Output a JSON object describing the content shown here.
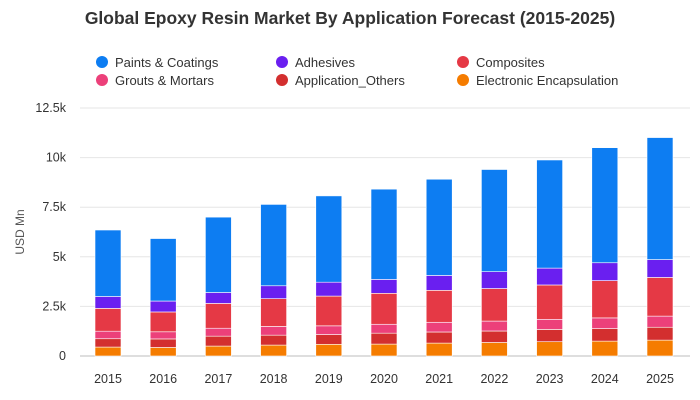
{
  "chart_data": {
    "type": "bar",
    "stacked": true,
    "title": "Global Epoxy Resin Market By Application Forecast (2015-2025)",
    "xlabel": "",
    "ylabel": "USD Mn",
    "ylim": [
      0,
      12500
    ],
    "y_ticks": [
      0,
      2500,
      5000,
      7500,
      10000,
      12500
    ],
    "y_tick_labels": [
      "0",
      "2.5k",
      "5k",
      "7.5k",
      "10k",
      "12.5k"
    ],
    "grid": true,
    "legend_position": "top",
    "categories": [
      "2015",
      "2016",
      "2017",
      "2018",
      "2019",
      "2020",
      "2021",
      "2022",
      "2023",
      "2024",
      "2025"
    ],
    "series": [
      {
        "name": "Electronic Encapsulation",
        "color": "#f57c00",
        "values": [
          450,
          430,
          500,
          550,
          590,
          600,
          650,
          680,
          720,
          750,
          800
        ]
      },
      {
        "name": "Application_Others",
        "color": "#d32f2f",
        "values": [
          420,
          430,
          500,
          500,
          490,
          550,
          560,
          580,
          620,
          630,
          650
        ]
      },
      {
        "name": "Grouts & Mortars",
        "color": "#ec407a",
        "values": [
          380,
          360,
          400,
          440,
          440,
          450,
          490,
          500,
          510,
          540,
          560
        ]
      },
      {
        "name": "Composites",
        "color": "#e53945",
        "values": [
          1150,
          1000,
          1250,
          1400,
          1500,
          1560,
          1610,
          1640,
          1730,
          1880,
          1950
        ]
      },
      {
        "name": "Adhesives",
        "color": "#6a1ff0",
        "values": [
          600,
          550,
          550,
          650,
          700,
          700,
          750,
          850,
          850,
          900,
          900
        ]
      },
      {
        "name": "Paints & Coatings",
        "color": "#0d7df2",
        "values": [
          3350,
          3150,
          3800,
          4100,
          4350,
          4550,
          4850,
          5150,
          5450,
          5800,
          6150
        ]
      }
    ],
    "legend_order": [
      "Paints & Coatings",
      "Adhesives",
      "Composites",
      "Grouts & Mortars",
      "Application_Others",
      "Electronic Encapsulation"
    ]
  }
}
